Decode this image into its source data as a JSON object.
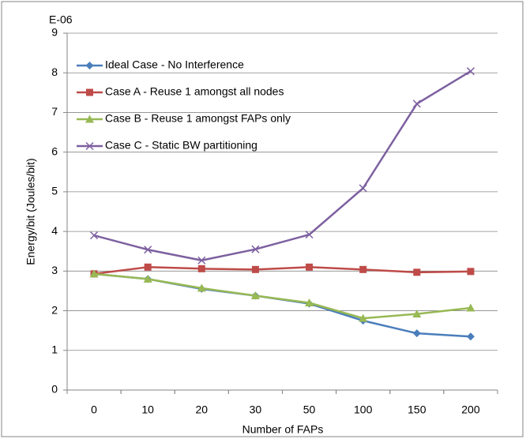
{
  "chart_data": {
    "type": "line",
    "y_axis_unit": "E-06",
    "x_label": "Number of FAPs",
    "y_label": "Energy/bit (Joules/bit)",
    "categories": [
      "0",
      "10",
      "20",
      "30",
      "50",
      "100",
      "150",
      "200"
    ],
    "series": [
      {
        "name": "Ideal Case - No Interference",
        "color": "#4a7ebb",
        "marker": "diamond",
        "values": [
          2.93,
          2.8,
          2.55,
          2.38,
          2.18,
          1.75,
          1.43,
          1.35
        ]
      },
      {
        "name": "Case A - Reuse 1 amongst all nodes",
        "color": "#be4b48",
        "marker": "square",
        "values": [
          2.93,
          3.1,
          3.06,
          3.04,
          3.1,
          3.04,
          2.97,
          2.99
        ]
      },
      {
        "name": "Case B - Reuse 1 amongst FAPs only",
        "color": "#98b954",
        "marker": "triangle",
        "values": [
          2.93,
          2.8,
          2.57,
          2.38,
          2.2,
          1.81,
          1.92,
          2.07
        ]
      },
      {
        "name": "Case C - Static BW partitioning",
        "color": "#7d60a0",
        "marker": "x",
        "values": [
          3.9,
          3.54,
          3.27,
          3.55,
          3.92,
          5.09,
          7.22,
          8.04
        ]
      }
    ],
    "ylim": [
      0,
      9
    ],
    "yticks": [
      0,
      1,
      2,
      3,
      4,
      5,
      6,
      7,
      8,
      9
    ],
    "grid": true,
    "legend": "top-left"
  }
}
